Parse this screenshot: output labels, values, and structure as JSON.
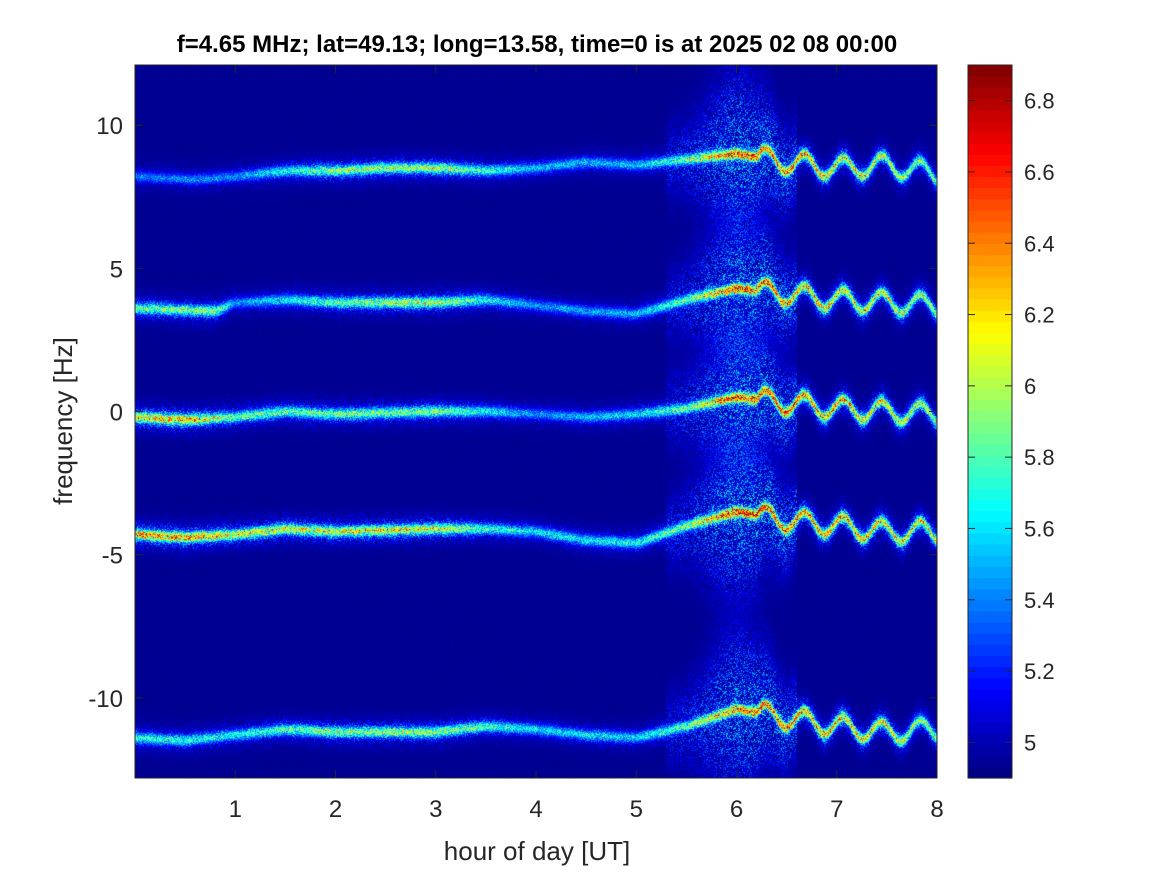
{
  "chart_data": {
    "type": "heatmap",
    "title": "f=4.65 MHz;  lat=49.13; long=13.58, time=0 is at 2025 02 08 00:00",
    "xlabel": "hour of day [UT]",
    "ylabel": "frequency [Hz]",
    "xlim": [
      0,
      8
    ],
    "ylim": [
      -12.8,
      12.1
    ],
    "x_ticks": [
      1,
      2,
      3,
      4,
      5,
      6,
      7,
      8
    ],
    "y_ticks": [
      -10,
      -5,
      0,
      5,
      10
    ],
    "colorbar": {
      "colormap": "jet",
      "range": [
        4.9,
        6.9
      ],
      "ticks": [
        5,
        5.2,
        5.4,
        5.6,
        5.8,
        6,
        6.2,
        6.4,
        6.6,
        6.8
      ]
    },
    "background_color": "#000f8c",
    "grid": false,
    "bands": [
      {
        "center": [
          [
            0,
            8.2
          ],
          [
            0.6,
            8.1
          ],
          [
            1,
            8.2
          ],
          [
            1.5,
            8.4
          ],
          [
            2,
            8.4
          ],
          [
            2.5,
            8.5
          ],
          [
            3,
            8.5
          ],
          [
            3.5,
            8.4
          ],
          [
            4,
            8.5
          ],
          [
            4.5,
            8.7
          ],
          [
            5,
            8.6
          ],
          [
            5.5,
            8.8
          ],
          [
            6,
            9.0
          ],
          [
            6.5,
            8.7
          ],
          [
            7,
            8.5
          ],
          [
            7.5,
            8.6
          ],
          [
            8,
            8.3
          ]
        ],
        "intensity": [
          [
            0,
            0.28
          ],
          [
            1,
            0.3
          ],
          [
            2,
            0.6
          ],
          [
            3,
            0.62
          ],
          [
            3.5,
            0.5
          ],
          [
            4,
            0.35
          ],
          [
            5,
            0.35
          ],
          [
            5.5,
            0.55
          ],
          [
            6,
            0.95
          ],
          [
            6.5,
            0.85
          ],
          [
            7,
            0.75
          ],
          [
            8,
            0.55
          ]
        ]
      },
      {
        "center": [
          [
            0,
            3.6
          ],
          [
            0.8,
            3.5
          ],
          [
            1,
            3.8
          ],
          [
            1.5,
            3.9
          ],
          [
            2,
            3.8
          ],
          [
            3,
            3.8
          ],
          [
            3.5,
            3.9
          ],
          [
            4,
            3.7
          ],
          [
            4.5,
            3.5
          ],
          [
            5,
            3.4
          ],
          [
            5.5,
            3.9
          ],
          [
            6,
            4.3
          ],
          [
            6.5,
            4.1
          ],
          [
            7,
            3.9
          ],
          [
            7.5,
            3.8
          ],
          [
            8,
            3.7
          ]
        ],
        "intensity": [
          [
            0,
            0.55
          ],
          [
            0.8,
            0.6
          ],
          [
            1,
            0.3
          ],
          [
            2,
            0.55
          ],
          [
            3,
            0.65
          ],
          [
            3.5,
            0.45
          ],
          [
            4,
            0.3
          ],
          [
            5,
            0.35
          ],
          [
            5.5,
            0.55
          ],
          [
            6,
            0.95
          ],
          [
            6.5,
            0.85
          ],
          [
            7,
            0.75
          ],
          [
            8,
            0.6
          ]
        ]
      },
      {
        "center": [
          [
            0,
            -0.2
          ],
          [
            0.5,
            -0.3
          ],
          [
            1,
            -0.2
          ],
          [
            1.5,
            0.0
          ],
          [
            2,
            -0.1
          ],
          [
            3,
            0.0
          ],
          [
            3.5,
            0.0
          ],
          [
            4,
            -0.1
          ],
          [
            4.5,
            -0.2
          ],
          [
            5,
            -0.1
          ],
          [
            5.5,
            0.1
          ],
          [
            6,
            0.5
          ],
          [
            6.5,
            0.3
          ],
          [
            7,
            0.1
          ],
          [
            7.5,
            0.0
          ],
          [
            8,
            -0.1
          ]
        ],
        "intensity": [
          [
            0,
            0.75
          ],
          [
            0.5,
            0.8
          ],
          [
            1,
            0.55
          ],
          [
            2,
            0.55
          ],
          [
            3,
            0.6
          ],
          [
            3.5,
            0.45
          ],
          [
            4,
            0.3
          ],
          [
            5,
            0.4
          ],
          [
            5.5,
            0.55
          ],
          [
            6,
            0.95
          ],
          [
            6.5,
            0.9
          ],
          [
            7,
            0.8
          ],
          [
            8,
            0.65
          ]
        ]
      },
      {
        "center": [
          [
            0,
            -4.3
          ],
          [
            0.5,
            -4.4
          ],
          [
            1,
            -4.3
          ],
          [
            1.5,
            -4.1
          ],
          [
            2,
            -4.2
          ],
          [
            3,
            -4.1
          ],
          [
            3.5,
            -4.1
          ],
          [
            4,
            -4.2
          ],
          [
            4.5,
            -4.5
          ],
          [
            5,
            -4.6
          ],
          [
            5.5,
            -4.0
          ],
          [
            6,
            -3.5
          ],
          [
            6.5,
            -3.8
          ],
          [
            7,
            -4.0
          ],
          [
            7.5,
            -4.2
          ],
          [
            8,
            -4.2
          ]
        ],
        "intensity": [
          [
            0,
            0.8
          ],
          [
            0.5,
            0.85
          ],
          [
            1,
            0.7
          ],
          [
            2,
            0.72
          ],
          [
            3,
            0.7
          ],
          [
            3.5,
            0.5
          ],
          [
            4,
            0.4
          ],
          [
            5,
            0.45
          ],
          [
            5.5,
            0.6
          ],
          [
            6,
            1.0
          ],
          [
            6.5,
            0.9
          ],
          [
            7,
            0.82
          ],
          [
            8,
            0.7
          ]
        ]
      },
      {
        "center": [
          [
            0,
            -11.4
          ],
          [
            0.5,
            -11.5
          ],
          [
            1,
            -11.3
          ],
          [
            1.5,
            -11.1
          ],
          [
            2,
            -11.2
          ],
          [
            3,
            -11.2
          ],
          [
            3.5,
            -11.0
          ],
          [
            4,
            -11.1
          ],
          [
            4.5,
            -11.3
          ],
          [
            5,
            -11.4
          ],
          [
            5.5,
            -11.0
          ],
          [
            6,
            -10.4
          ],
          [
            6.5,
            -10.7
          ],
          [
            7,
            -11.0
          ],
          [
            7.5,
            -11.2
          ],
          [
            8,
            -11.1
          ]
        ],
        "intensity": [
          [
            0,
            0.5
          ],
          [
            1,
            0.45
          ],
          [
            2,
            0.6
          ],
          [
            3,
            0.62
          ],
          [
            3.5,
            0.5
          ],
          [
            4,
            0.4
          ],
          [
            5,
            0.4
          ],
          [
            5.5,
            0.55
          ],
          [
            6,
            0.9
          ],
          [
            6.5,
            0.88
          ],
          [
            7,
            0.8
          ],
          [
            8,
            0.6
          ]
        ]
      }
    ]
  }
}
